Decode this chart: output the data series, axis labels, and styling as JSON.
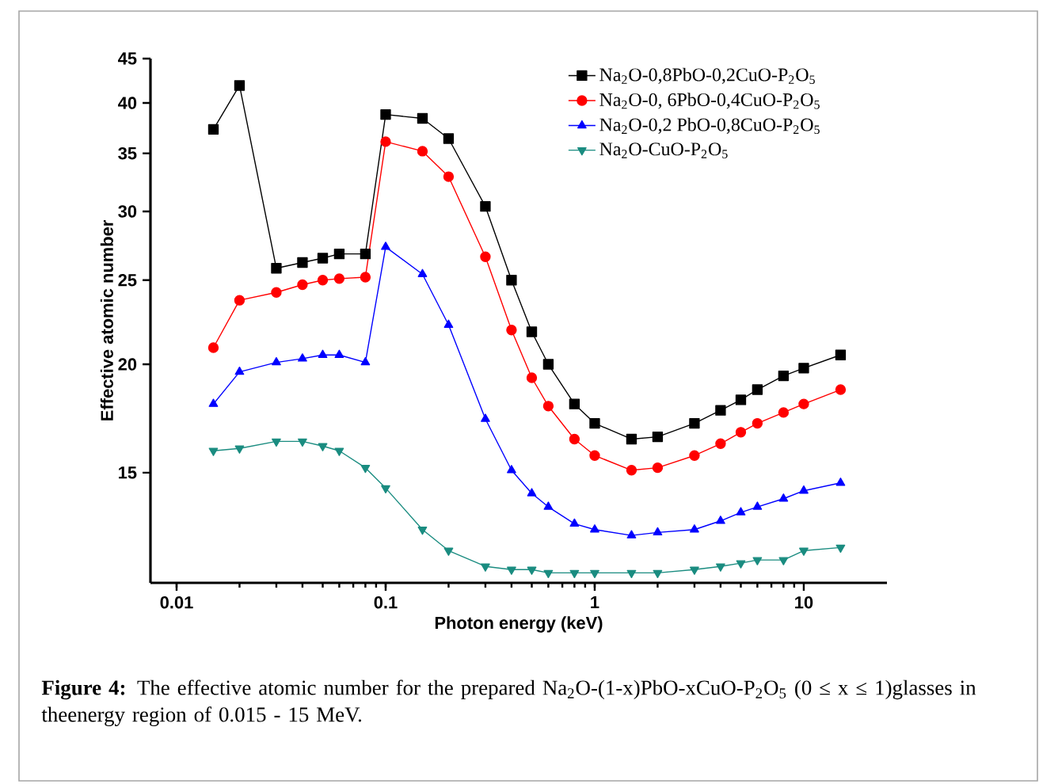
{
  "chart_data": {
    "type": "line",
    "log": "xy",
    "xlabel": "Photon energy (keV)",
    "ylabel": "Effective atomic number",
    "xlim": [
      0.0075,
      25
    ],
    "ylim": [
      11.2,
      45
    ],
    "xticks": [
      0.01,
      0.1,
      1,
      10
    ],
    "yticks": [
      15,
      20,
      25,
      30,
      35,
      40,
      45
    ],
    "legend": "top right",
    "x": [
      0.015,
      0.02,
      0.03,
      0.04,
      0.05,
      0.06,
      0.08,
      0.1,
      0.15,
      0.2,
      0.3,
      0.4,
      0.5,
      0.6,
      0.8,
      1,
      1.5,
      2,
      3,
      4,
      5,
      6,
      8,
      10,
      15
    ],
    "series": [
      {
        "name": "Na$_{2}$O-0,8PbO-0,2CuO-P$_{2}$O$_{5}$",
        "color": "#000000",
        "marker": "square",
        "values": [
          37.3,
          41.9,
          25.8,
          26.2,
          26.5,
          26.8,
          26.8,
          38.8,
          38.4,
          36.4,
          30.4,
          25.0,
          21.8,
          20.0,
          18.0,
          17.1,
          16.4,
          16.5,
          17.1,
          17.7,
          18.2,
          18.7,
          19.4,
          19.8,
          20.5
        ]
      },
      {
        "name": "Na$_{2}$O-0, 6PbO-0,4CuO-P$_{2}$O$_{5}$",
        "color": "#ff0000",
        "marker": "circle",
        "values": [
          20.9,
          23.7,
          24.2,
          24.7,
          25.0,
          25.1,
          25.2,
          36.1,
          35.2,
          32.9,
          26.6,
          21.9,
          19.3,
          17.9,
          16.4,
          15.7,
          15.1,
          15.2,
          15.7,
          16.2,
          16.7,
          17.1,
          17.6,
          18.0,
          18.7
        ]
      },
      {
        "name": "Na$_{2}$O-0,2 PbO-0,8CuO-P$_{2}$O$_{5}$",
        "color": "#0000ff",
        "marker": "triangle",
        "values": [
          18.0,
          19.6,
          20.1,
          20.3,
          20.5,
          20.5,
          20.1,
          27.3,
          25.4,
          22.2,
          17.3,
          15.1,
          14.2,
          13.7,
          13.1,
          12.9,
          12.7,
          12.8,
          12.9,
          13.2,
          13.5,
          13.7,
          14.0,
          14.3,
          14.6
        ]
      },
      {
        "name": "Na$_{2}$O-CuO-P$_{2}$O$_{5}$",
        "color": "#1a8c80",
        "marker": "triangle_down",
        "values": [
          15.9,
          16.0,
          16.3,
          16.3,
          16.1,
          15.9,
          15.2,
          14.4,
          12.9,
          12.2,
          11.7,
          11.6,
          11.6,
          11.5,
          11.5,
          11.5,
          11.5,
          11.5,
          11.6,
          11.7,
          11.8,
          11.9,
          11.9,
          12.2,
          12.3
        ]
      }
    ],
    "annotations": [
      "**Figure 4:** The effective atomic number for the prepared Na$_{2}$O-(1-x)PbO-xCuO-P$_{2}$O$_{5}$ (0 ≤ x ≤ 1)glasses in theenergy region of 0.015 - 15 MeV."
    ]
  }
}
